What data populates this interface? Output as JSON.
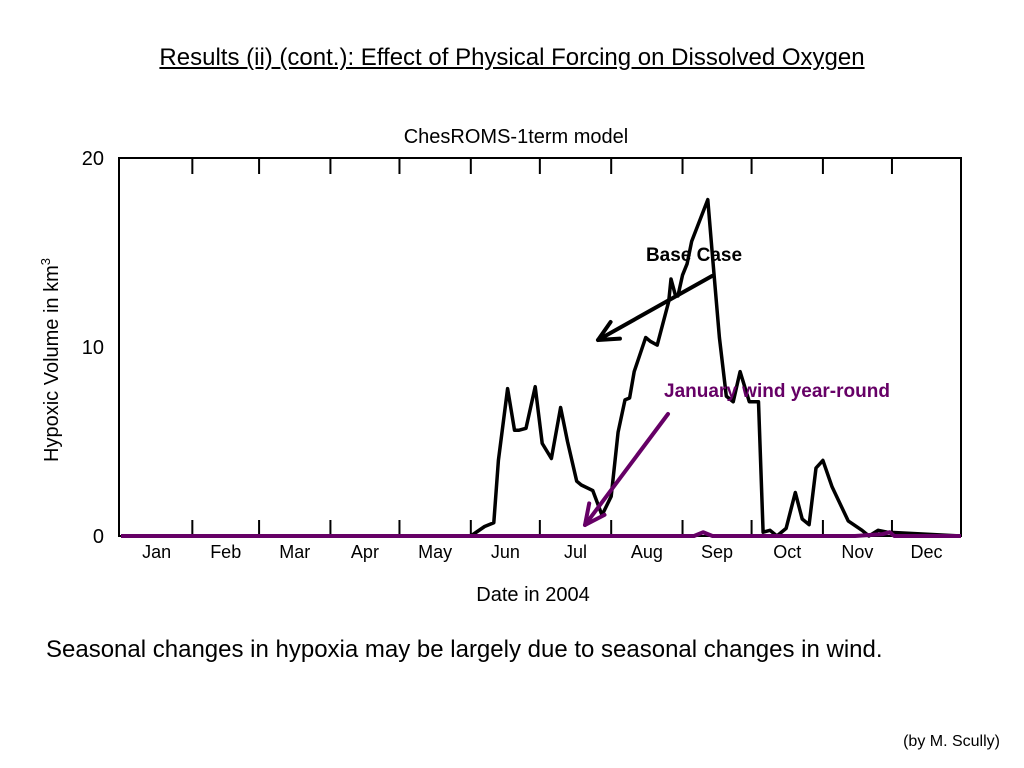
{
  "slide": {
    "title": "Results (ii) (cont.): Effect of Physical Forcing on Dissolved Oxygen",
    "takeaway": "Seasonal changes in hypoxia may be largely due to seasonal changes in wind.",
    "credit": "(by M. Scully)"
  },
  "chart_data": {
    "type": "line",
    "title": "ChesROMS-1term model",
    "xlabel": "Date in 2004",
    "ylabel": "Hypoxic Volume in km",
    "ylabel_sup": "3",
    "xlim": [
      1,
      366
    ],
    "ylim": [
      0,
      20
    ],
    "yticks": [
      0,
      10,
      20
    ],
    "x_month_labels": [
      "Jan",
      "Feb",
      "Mar",
      "Apr",
      "May",
      "Jun",
      "Jul",
      "Aug",
      "Sep",
      "Oct",
      "Nov",
      "Dec"
    ],
    "x_month_starts": [
      1,
      32,
      61,
      92,
      122,
      153,
      183,
      214,
      245,
      275,
      306,
      336
    ],
    "grid": false,
    "series": [
      {
        "name": "Base Case",
        "color": "#000000",
        "x": [
          1,
          140,
          150,
          153,
          159,
          163,
          165,
          169,
          172,
          174,
          177,
          181,
          184,
          188,
          192,
          195,
          199,
          201,
          206,
          210,
          214,
          217,
          220,
          222,
          224,
          229,
          231,
          234,
          239,
          240,
          242,
          243,
          245,
          247,
          249,
          256,
          258,
          261,
          264,
          267,
          270,
          274,
          278,
          280,
          283,
          286,
          290,
          294,
          297,
          300,
          303,
          306,
          310,
          317,
          323,
          326,
          330,
          334,
          366
        ],
        "y": [
          0,
          0,
          0,
          0,
          0.5,
          0.7,
          4,
          7.8,
          5.6,
          5.6,
          5.7,
          7.9,
          4.9,
          4.1,
          6.8,
          5.0,
          2.9,
          2.7,
          2.4,
          1.1,
          2.1,
          5.5,
          7.2,
          7.3,
          8.7,
          10.5,
          10.3,
          10.1,
          12.4,
          13.6,
          12.7,
          12.7,
          13.8,
          14.4,
          15.6,
          17.8,
          14.8,
          10.5,
          7.4,
          7.1,
          8.7,
          7.1,
          7.1,
          0.2,
          0.3,
          0,
          0.4,
          2.3,
          0.9,
          0.6,
          3.6,
          4.0,
          2.6,
          0.8,
          0.3,
          0,
          0.3,
          0.2,
          0
        ]
      },
      {
        "name": "January wind year-round",
        "color": "#660066",
        "x": [
          1,
          200,
          250,
          252,
          254,
          256,
          258,
          260,
          262,
          320,
          332,
          335,
          337,
          366
        ],
        "y": [
          0,
          0,
          0,
          0.1,
          0.2,
          0.1,
          0,
          0,
          0,
          0,
          0.1,
          0.2,
          0,
          0
        ]
      }
    ],
    "annotations": [
      {
        "text": "Base Case",
        "color": "#000000"
      },
      {
        "text": "January wind year-round",
        "color": "#660066"
      }
    ]
  }
}
